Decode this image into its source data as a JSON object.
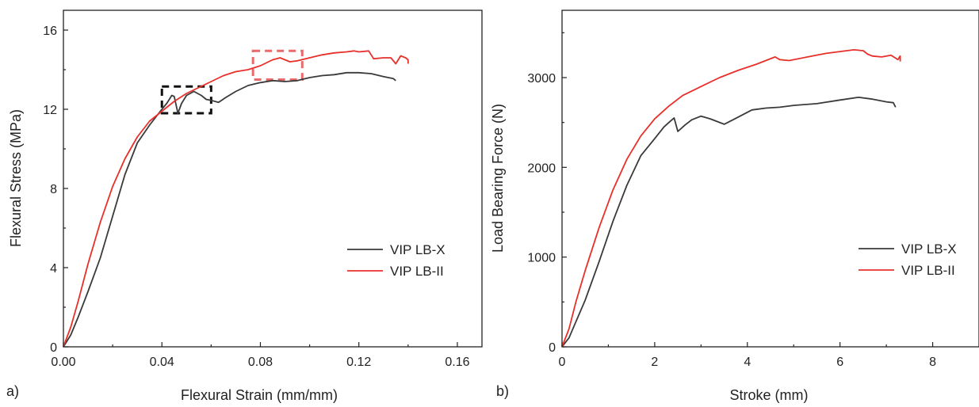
{
  "chart_data": [
    {
      "type": "line",
      "panel_label": "a)",
      "title": "",
      "xlabel": "Flexural Strain (mm/mm)",
      "ylabel": "Flexural Stress (MPa)",
      "xlim": [
        0,
        0.17
      ],
      "ylim": [
        0,
        17
      ],
      "x_ticks": [
        0,
        0.04,
        0.08,
        0.12,
        0.16
      ],
      "x_tick_labels": [
        "0.00",
        "0.04",
        "0.08",
        "0.12",
        "0.16"
      ],
      "y_ticks": [
        0,
        4,
        8,
        12,
        16
      ],
      "y_tick_labels": [
        "0",
        "4",
        "8",
        "12",
        "16"
      ],
      "grid": false,
      "legend_position": "lower-right",
      "series": [
        {
          "name": "VIP LB-X",
          "color": "#3a3a3a",
          "x": [
            0,
            0.003,
            0.006,
            0.01,
            0.015,
            0.02,
            0.025,
            0.03,
            0.035,
            0.04,
            0.042,
            0.044,
            0.045,
            0.0465,
            0.048,
            0.05,
            0.053,
            0.056,
            0.058,
            0.06,
            0.063,
            0.066,
            0.07,
            0.075,
            0.08,
            0.085,
            0.09,
            0.095,
            0.1,
            0.105,
            0.11,
            0.115,
            0.12,
            0.125,
            0.13,
            0.134,
            0.135
          ],
          "y": [
            0,
            0.6,
            1.5,
            2.8,
            4.5,
            6.6,
            8.7,
            10.3,
            11.2,
            12.0,
            12.3,
            12.7,
            12.65,
            11.8,
            12.3,
            12.7,
            12.9,
            12.7,
            12.5,
            12.45,
            12.35,
            12.6,
            12.9,
            13.2,
            13.35,
            13.45,
            13.4,
            13.45,
            13.6,
            13.7,
            13.75,
            13.85,
            13.85,
            13.8,
            13.65,
            13.55,
            13.45
          ]
        },
        {
          "name": "VIP LB-II",
          "color": "#e8302b",
          "x": [
            0,
            0.003,
            0.006,
            0.01,
            0.015,
            0.02,
            0.025,
            0.03,
            0.035,
            0.04,
            0.045,
            0.05,
            0.055,
            0.06,
            0.065,
            0.07,
            0.075,
            0.08,
            0.085,
            0.088,
            0.092,
            0.095,
            0.1,
            0.105,
            0.11,
            0.115,
            0.118,
            0.12,
            0.124,
            0.126,
            0.13,
            0.133,
            0.135,
            0.137,
            0.139,
            0.14,
            0.14
          ],
          "y": [
            0,
            1.0,
            2.3,
            4.2,
            6.3,
            8.1,
            9.5,
            10.6,
            11.4,
            11.9,
            12.4,
            12.8,
            13.1,
            13.4,
            13.7,
            13.9,
            14.0,
            14.2,
            14.5,
            14.6,
            14.4,
            14.45,
            14.6,
            14.75,
            14.85,
            14.9,
            14.95,
            14.9,
            14.95,
            14.55,
            14.6,
            14.6,
            14.3,
            14.7,
            14.6,
            14.5,
            14.3
          ]
        }
      ],
      "annotations": [
        {
          "shape": "dashed-rectangle",
          "color": "#111111",
          "x_range": [
            0.04,
            0.06
          ],
          "y_range": [
            11.8,
            13.15
          ]
        },
        {
          "shape": "dashed-rectangle",
          "color": "#e86a6a",
          "x_range": [
            0.077,
            0.097
          ],
          "y_range": [
            13.5,
            14.95
          ]
        }
      ]
    },
    {
      "type": "line",
      "panel_label": "b)",
      "title": "",
      "xlabel": "Stroke (mm)",
      "ylabel": "Load Bearing Force (N)",
      "xlim": [
        0,
        9
      ],
      "ylim": [
        0,
        3750
      ],
      "x_ticks": [
        0,
        2,
        4,
        6,
        8
      ],
      "x_tick_labels": [
        "0",
        "2",
        "4",
        "6",
        "8"
      ],
      "y_ticks": [
        0,
        1000,
        2000,
        3000
      ],
      "y_tick_labels": [
        "0",
        "1000",
        "2000",
        "3000"
      ],
      "grid": false,
      "legend_position": "lower-right",
      "series": [
        {
          "name": "VIP LB-X",
          "color": "#3a3a3a",
          "x": [
            0,
            0.15,
            0.3,
            0.5,
            0.8,
            1.1,
            1.4,
            1.7,
            2.0,
            2.2,
            2.35,
            2.42,
            2.5,
            2.65,
            2.8,
            3.0,
            3.2,
            3.5,
            3.8,
            4.1,
            4.4,
            4.7,
            5.0,
            5.5,
            6.0,
            6.4,
            6.7,
            7.0,
            7.15,
            7.2
          ],
          "y": [
            0,
            100,
            280,
            520,
            950,
            1400,
            1800,
            2130,
            2320,
            2450,
            2520,
            2550,
            2400,
            2470,
            2530,
            2570,
            2540,
            2480,
            2560,
            2640,
            2660,
            2670,
            2690,
            2710,
            2750,
            2780,
            2760,
            2730,
            2720,
            2670
          ]
        },
        {
          "name": "VIP LB-II",
          "color": "#e8302b",
          "x": [
            0,
            0.15,
            0.3,
            0.5,
            0.8,
            1.1,
            1.4,
            1.7,
            2.0,
            2.3,
            2.6,
            3.0,
            3.4,
            3.8,
            4.2,
            4.6,
            4.7,
            4.9,
            5.3,
            5.7,
            6.0,
            6.3,
            6.5,
            6.6,
            6.7,
            6.9,
            7.1,
            7.25,
            7.3,
            7.3
          ],
          "y": [
            0,
            200,
            500,
            850,
            1330,
            1750,
            2090,
            2350,
            2540,
            2680,
            2800,
            2900,
            3000,
            3080,
            3150,
            3230,
            3200,
            3190,
            3230,
            3270,
            3290,
            3310,
            3300,
            3260,
            3240,
            3230,
            3250,
            3200,
            3240,
            3180
          ]
        }
      ],
      "annotations": []
    }
  ]
}
